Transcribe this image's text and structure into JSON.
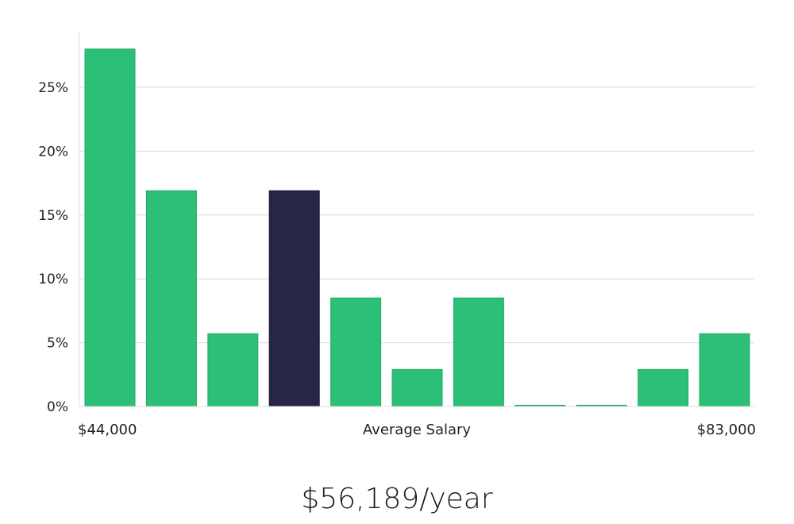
{
  "chart_data": {
    "type": "bar",
    "values": [
      28,
      16.9,
      5.7,
      16.9,
      8.5,
      2.9,
      8.5,
      0.1,
      0.1,
      2.9,
      5.7
    ],
    "highlight_index": 3,
    "y_ticks": [
      "0%",
      "5%",
      "10%",
      "15%",
      "20%",
      "25%"
    ],
    "ylim": [
      0,
      30
    ],
    "x_min_label": "$44,000",
    "x_max_label": "$83,000",
    "xlabel": "Average Salary",
    "grid": true
  },
  "summary": {
    "average_salary": "$56,189/year"
  },
  "colors": {
    "bar": "#2bbf77",
    "bar_stroke": "#22a965",
    "highlight": "#282646",
    "highlight_stroke": "#14122a"
  }
}
